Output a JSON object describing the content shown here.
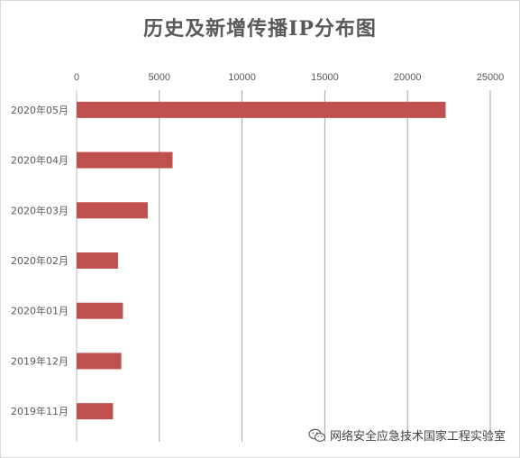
{
  "chart_data": {
    "type": "bar",
    "orientation": "horizontal",
    "title": "历史及新增传播IP分布图",
    "categories": [
      "2020年05月",
      "2020年04月",
      "2020年03月",
      "2020年02月",
      "2020年01月",
      "2019年12月",
      "2019年11月"
    ],
    "series": [
      {
        "values": [
          22300,
          5800,
          4300,
          2500,
          2800,
          2700,
          2200
        ]
      }
    ],
    "xlim": [
      0,
      25000
    ],
    "xticks": [
      0,
      5000,
      10000,
      15000,
      20000,
      25000
    ],
    "x_axis_position": "top",
    "grid": true,
    "legend": "none",
    "bar_color": "#c0504d",
    "grid_color": "#a6a6a6"
  },
  "watermark": {
    "text": "网络安全应急技术国家工程实验室",
    "icon": "wechat-icon"
  }
}
